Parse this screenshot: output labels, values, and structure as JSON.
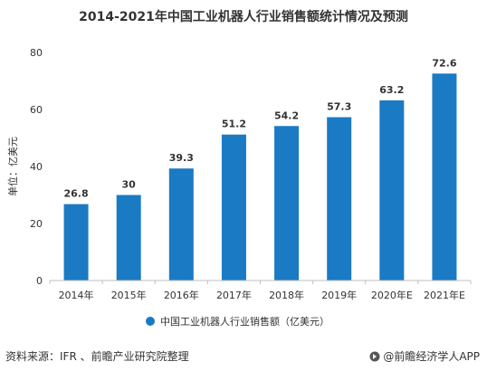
{
  "chart_data": {
    "type": "bar",
    "title": "2014-2021年中国工业机器人行业销售额统计情况及预测",
    "ylabel": "单位：亿美元",
    "xlabel": "",
    "categories": [
      "2014年",
      "2015年",
      "2016年",
      "2017年",
      "2018年",
      "2019年",
      "2020年E",
      "2021年E"
    ],
    "series": [
      {
        "name": "中国工业机器人行业销售额（亿美元）",
        "values": [
          26.8,
          30,
          39.3,
          51.2,
          54.2,
          57.3,
          63.2,
          72.6
        ],
        "data_labels": [
          "26.8",
          "30",
          "39.3",
          "51.2",
          "54.2",
          "57.3",
          "63.2",
          "72.6"
        ],
        "color": "#1a7ac4"
      }
    ],
    "ylim": [
      0,
      80
    ],
    "yticks": [
      "0",
      "20",
      "40",
      "60",
      "80"
    ],
    "grid": false,
    "legend_position": "bottom"
  },
  "footer": {
    "source": "资料来源：IFR 、前瞻产业研究院整理",
    "brand": "@前瞻经济学人APP"
  },
  "colors": {
    "bar": "#1a7ac4",
    "axis": "#bfbfbf",
    "text": "#333333"
  }
}
